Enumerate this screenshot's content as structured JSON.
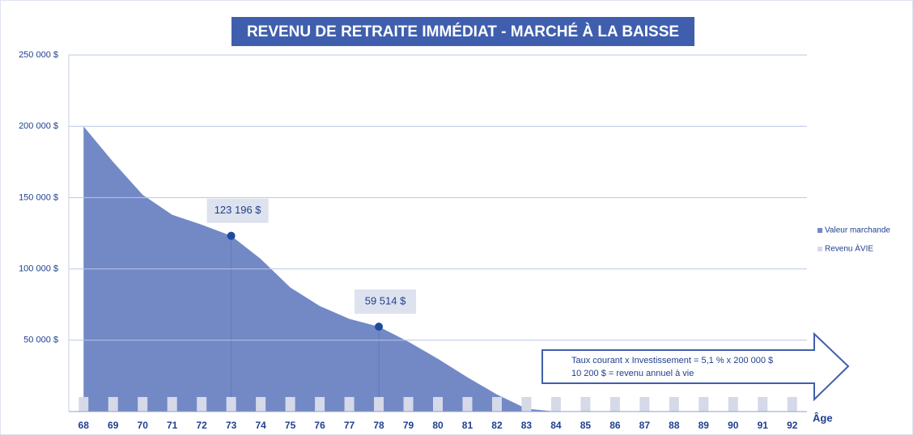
{
  "chart_data": {
    "type": "area",
    "title": "REVENU DE RETRAITE IMMÉDIAT - MARCHÉ À LA BAISSE",
    "x_label": "Âge",
    "categories": [
      "68",
      "69",
      "70",
      "71",
      "72",
      "73",
      "74",
      "75",
      "76",
      "77",
      "78",
      "79",
      "80",
      "81",
      "82",
      "83",
      "84",
      "85",
      "86",
      "87",
      "88",
      "89",
      "90",
      "91",
      "92"
    ],
    "series": [
      {
        "name": "Valeur marchande",
        "color": "#7389c6",
        "type": "area",
        "values": [
          200000,
          175000,
          152000,
          138000,
          131000,
          123196,
          107000,
          87000,
          74000,
          65000,
          59514,
          49000,
          37000,
          24000,
          12000,
          2000,
          0,
          0,
          0,
          0,
          0,
          0,
          0,
          0,
          0
        ],
        "value_labels": [
          null,
          null,
          null,
          null,
          null,
          "123 196 $",
          null,
          null,
          null,
          null,
          "59 514 $",
          null,
          null,
          null,
          null,
          null,
          null,
          null,
          null,
          null,
          null,
          null,
          null,
          null,
          null
        ]
      },
      {
        "name": "Revenu ÀVIE",
        "color": "#d5d9e8",
        "type": "bar",
        "values": [
          10200,
          10200,
          10200,
          10200,
          10200,
          10200,
          10200,
          10200,
          10200,
          10200,
          10200,
          10200,
          10200,
          10200,
          10200,
          10200,
          10200,
          10200,
          10200,
          10200,
          10200,
          10200,
          10200,
          10200,
          10200
        ]
      }
    ],
    "ylim": [
      0,
      250000
    ],
    "yticks": [
      {
        "value": 50000,
        "label": "50 000 $"
      },
      {
        "value": 100000,
        "label": "100 000 $"
      },
      {
        "value": 150000,
        "label": "150 000 $"
      },
      {
        "value": 200000,
        "label": "200 000 $"
      },
      {
        "value": 250000,
        "label": "250 000 $"
      }
    ],
    "grid": true,
    "legend": "right",
    "annotation": [
      "Taux courant x Investissement = 5,1 %  x 200 000 $",
      "10 200 $ = revenu annuel à vie"
    ]
  }
}
